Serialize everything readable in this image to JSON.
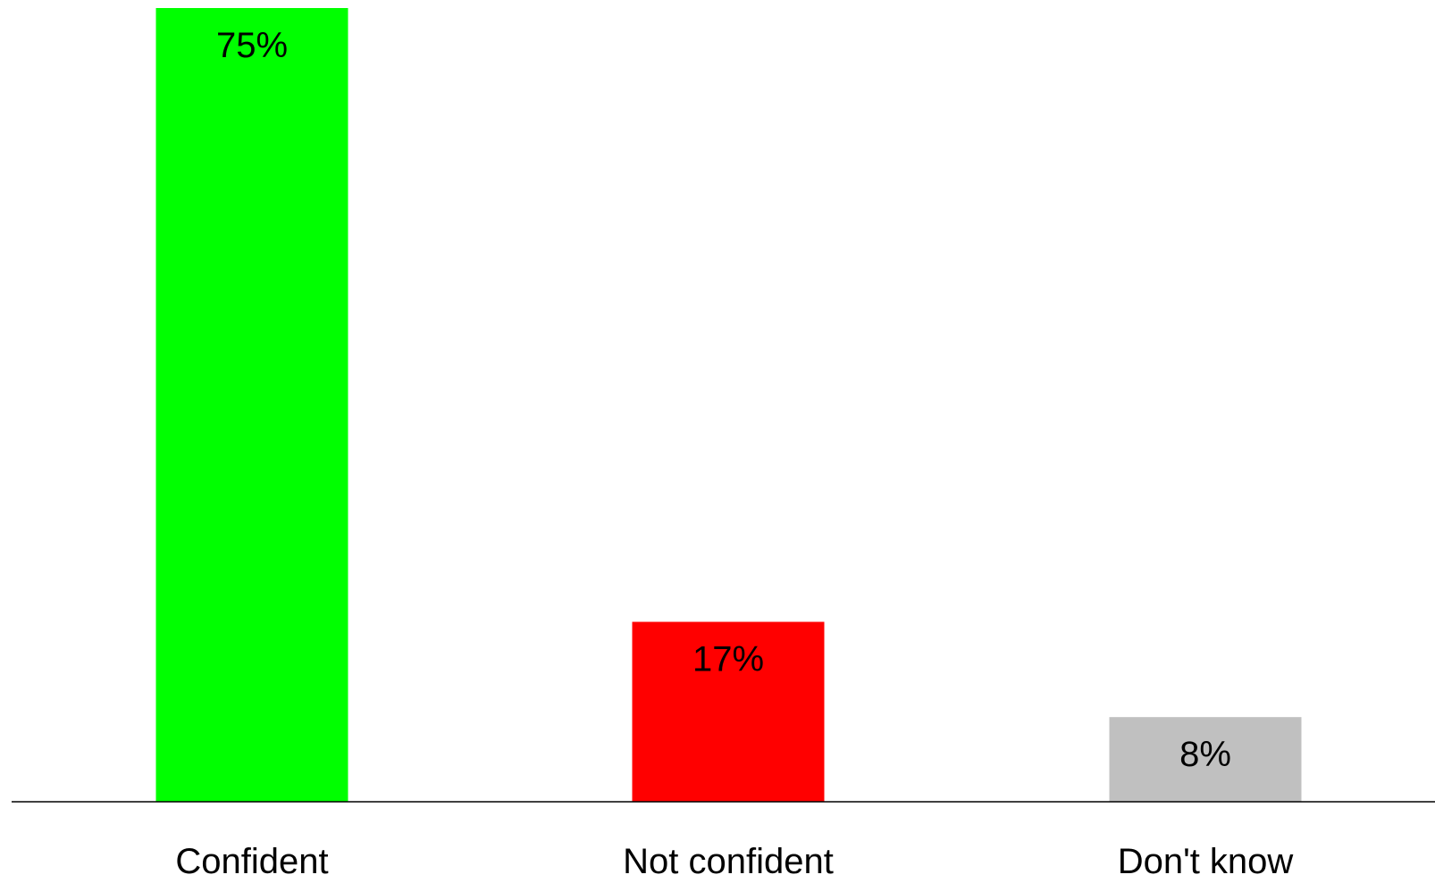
{
  "chart_data": {
    "type": "bar",
    "categories": [
      "Confident",
      "Not confident",
      "Don't know"
    ],
    "values": [
      75,
      17,
      8
    ],
    "value_labels": [
      "75%",
      "17%",
      "8%"
    ],
    "colors": [
      "#00ff00",
      "#ff0000",
      "#c0c0c0"
    ],
    "title": "",
    "xlabel": "",
    "ylabel": "",
    "ylim": [
      0,
      75
    ],
    "grid": false,
    "legend": "none",
    "baseline_color": "#000000"
  }
}
